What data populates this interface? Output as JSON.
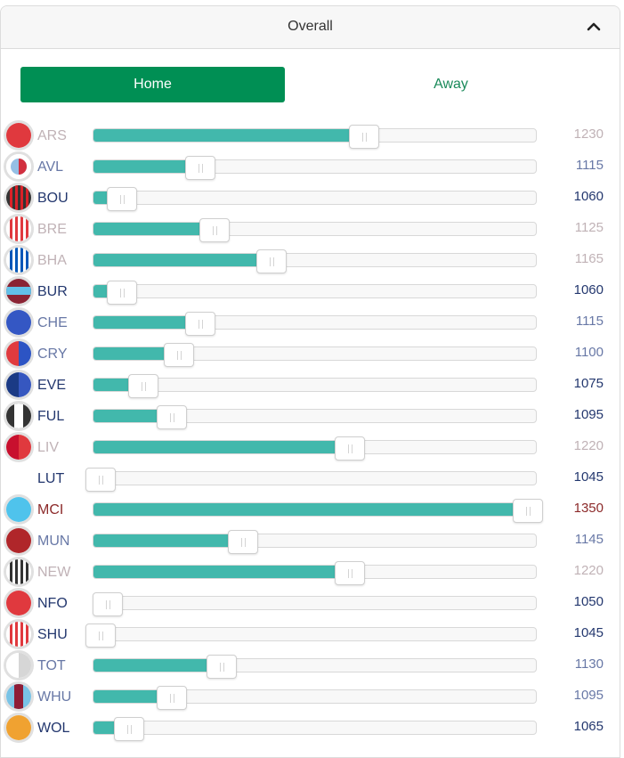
{
  "header": {
    "title": "Overall",
    "collapse_icon": "chevron-up-icon"
  },
  "tabs": {
    "home": "Home",
    "away": "Away",
    "active": "home",
    "active_color": "#008f54"
  },
  "slider": {
    "min": 1040,
    "max": 1352,
    "fill_color": "#42b8ac"
  },
  "teams": [
    {
      "code": "ARS",
      "rating": "1230",
      "value": 1230,
      "tone": "faded",
      "crest": "solid",
      "colors": [
        "#e0393e"
      ]
    },
    {
      "code": "AVL",
      "rating": "1115",
      "value": 1115,
      "tone": "mid",
      "crest": "split-small",
      "colors": [
        "#95bfe5",
        "#d22f3f"
      ]
    },
    {
      "code": "BOU",
      "rating": "1060",
      "value": 1060,
      "tone": "dark",
      "crest": "stripes",
      "colors": [
        "#333333",
        "#da2128"
      ]
    },
    {
      "code": "BRE",
      "rating": "1125",
      "value": 1125,
      "tone": "faded",
      "crest": "stripes",
      "colors": [
        "#ffffff",
        "#e0393e"
      ]
    },
    {
      "code": "BHA",
      "rating": "1165",
      "value": 1165,
      "tone": "faded",
      "crest": "stripes",
      "colors": [
        "#ffffff",
        "#0057b8"
      ]
    },
    {
      "code": "BUR",
      "rating": "1060",
      "value": 1060,
      "tone": "dark",
      "crest": "band",
      "colors": [
        "#8a2434",
        "#62c0e8"
      ]
    },
    {
      "code": "CHE",
      "rating": "1115",
      "value": 1115,
      "tone": "mid",
      "crest": "solid",
      "colors": [
        "#3457c4"
      ]
    },
    {
      "code": "CRY",
      "rating": "1100",
      "value": 1100,
      "tone": "mid",
      "crest": "split",
      "colors": [
        "#e03a3e",
        "#2c54c4"
      ]
    },
    {
      "code": "EVE",
      "rating": "1075",
      "value": 1075,
      "tone": "dark",
      "crest": "split",
      "colors": [
        "#1b3a85",
        "#3657c0"
      ]
    },
    {
      "code": "FUL",
      "rating": "1095",
      "value": 1095,
      "tone": "dark",
      "crest": "center-band",
      "colors": [
        "#333333",
        "#ffffff"
      ]
    },
    {
      "code": "LIV",
      "rating": "1220",
      "value": 1220,
      "tone": "faded",
      "crest": "split",
      "colors": [
        "#c8102e",
        "#e0393e"
      ]
    },
    {
      "code": "LUT",
      "rating": "1045",
      "value": 1045,
      "tone": "dark",
      "crest": "none",
      "colors": []
    },
    {
      "code": "MCI",
      "rating": "1350",
      "value": 1350,
      "tone": "red",
      "crest": "solid",
      "colors": [
        "#4fc3ec"
      ]
    },
    {
      "code": "MUN",
      "rating": "1145",
      "value": 1145,
      "tone": "mid",
      "crest": "solid",
      "colors": [
        "#b0262a"
      ]
    },
    {
      "code": "NEW",
      "rating": "1220",
      "value": 1220,
      "tone": "faded",
      "crest": "stripes",
      "colors": [
        "#ffffff",
        "#333333"
      ]
    },
    {
      "code": "NFO",
      "rating": "1050",
      "value": 1050,
      "tone": "dark",
      "crest": "solid",
      "colors": [
        "#e0393e"
      ]
    },
    {
      "code": "SHU",
      "rating": "1045",
      "value": 1045,
      "tone": "dark",
      "crest": "stripes",
      "colors": [
        "#ffffff",
        "#e0393e"
      ]
    },
    {
      "code": "TOT",
      "rating": "1130",
      "value": 1130,
      "tone": "mid",
      "crest": "split",
      "colors": [
        "#ffffff",
        "#d6d6d6"
      ]
    },
    {
      "code": "WHU",
      "rating": "1095",
      "value": 1095,
      "tone": "mid",
      "crest": "center-band",
      "colors": [
        "#79c3e6",
        "#8f1d36"
      ]
    },
    {
      "code": "WOL",
      "rating": "1065",
      "value": 1065,
      "tone": "dark",
      "crest": "solid",
      "colors": [
        "#f0a231"
      ]
    }
  ]
}
